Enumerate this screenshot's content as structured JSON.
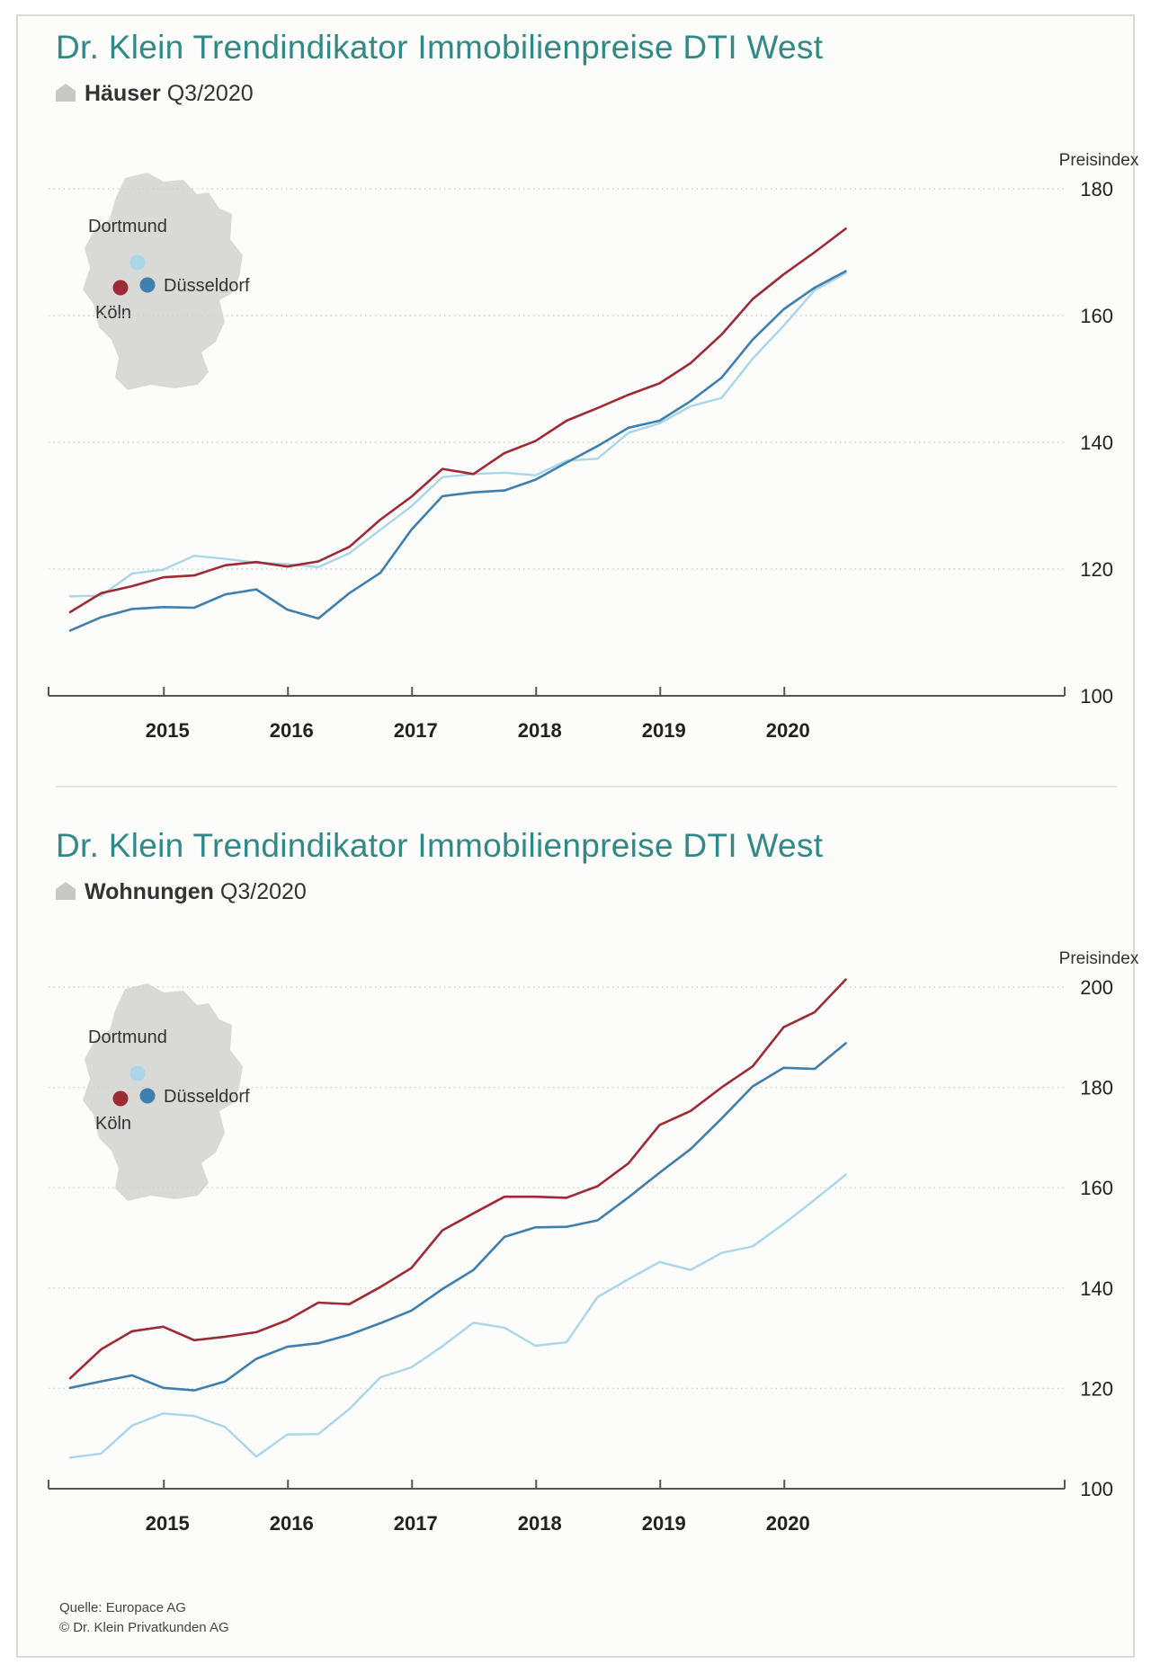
{
  "colors": {
    "title": "#2e8a86",
    "koeln": "#9e2a35",
    "duesseldorf": "#3f7fae",
    "dortmund": "#a9d6e8",
    "map": "#d9d9d8",
    "grid": "#cfcfcf",
    "axis": "#555555"
  },
  "legend": {
    "dortmund": "Dortmund",
    "duesseldorf": "Düsseldorf",
    "koeln": "Köln"
  },
  "footer": {
    "source": "Quelle: Europace AG",
    "copyright": "© Dr. Klein Privatkunden AG"
  },
  "chart_data": [
    {
      "type": "line",
      "title": "Dr. Klein Trendindikator Immobilienpreise DTI West",
      "subtitle_bold": "Häuser",
      "subtitle_rest": "Q3/2020",
      "ylabel": "Preisindex",
      "ylim": [
        100,
        180
      ],
      "yticks": [
        100,
        120,
        140,
        160,
        180
      ],
      "xticks": [
        "2015",
        "2016",
        "2017",
        "2018",
        "2019",
        "2020"
      ],
      "x": [
        "Q2/2014",
        "Q3/2014",
        "Q4/2014",
        "Q1/2015",
        "Q2/2015",
        "Q3/2015",
        "Q4/2015",
        "Q1/2016",
        "Q2/2016",
        "Q3/2016",
        "Q4/2016",
        "Q1/2017",
        "Q2/2017",
        "Q3/2017",
        "Q4/2017",
        "Q1/2018",
        "Q2/2018",
        "Q3/2018",
        "Q4/2018",
        "Q1/2019",
        "Q2/2019",
        "Q3/2019",
        "Q4/2019",
        "Q1/2020",
        "Q2/2020",
        "Q3/2020"
      ],
      "grid": true,
      "series": [
        {
          "name": "Köln",
          "key": "koeln",
          "values": [
            113.2,
            116.2,
            117.3,
            118.7,
            119.0,
            120.6,
            121.1,
            120.4,
            121.2,
            123.5,
            127.8,
            131.4,
            135.8,
            135.0,
            138.3,
            140.2,
            143.4,
            145.4,
            147.5,
            149.3,
            152.5,
            157.0,
            162.6,
            166.5,
            170.0,
            173.7
          ]
        },
        {
          "name": "Düsseldorf",
          "key": "duesseldorf",
          "values": [
            110.3,
            112.4,
            113.7,
            114.0,
            113.9,
            116.0,
            116.8,
            113.6,
            112.2,
            116.2,
            119.4,
            126.2,
            131.5,
            132.1,
            132.4,
            134.1,
            136.8,
            139.4,
            142.3,
            143.4,
            146.5,
            150.2,
            156.2,
            161.0,
            164.4,
            167.0
          ]
        },
        {
          "name": "Dortmund",
          "key": "dortmund",
          "values": [
            115.7,
            115.8,
            119.3,
            119.9,
            122.1,
            121.6,
            121.0,
            120.8,
            120.3,
            122.5,
            126.2,
            129.9,
            134.5,
            135.0,
            135.2,
            134.8,
            137.1,
            137.4,
            141.5,
            143.0,
            145.7,
            147.0,
            153.2,
            158.4,
            164.0,
            166.7
          ]
        }
      ]
    },
    {
      "type": "line",
      "title": "Dr. Klein Trendindikator Immobilienpreise DTI West",
      "subtitle_bold": "Wohnungen",
      "subtitle_rest": "Q3/2020",
      "ylabel": "Preisindex",
      "ylim": [
        100,
        200
      ],
      "yticks": [
        100,
        120,
        140,
        160,
        180,
        200
      ],
      "xticks": [
        "2015",
        "2016",
        "2017",
        "2018",
        "2019",
        "2020"
      ],
      "x": [
        "Q2/2014",
        "Q3/2014",
        "Q4/2014",
        "Q1/2015",
        "Q2/2015",
        "Q3/2015",
        "Q4/2015",
        "Q1/2016",
        "Q2/2016",
        "Q3/2016",
        "Q4/2016",
        "Q1/2017",
        "Q2/2017",
        "Q3/2017",
        "Q4/2017",
        "Q1/2018",
        "Q2/2018",
        "Q3/2018",
        "Q4/2018",
        "Q1/2019",
        "Q2/2019",
        "Q3/2019",
        "Q4/2019",
        "Q1/2020",
        "Q2/2020",
        "Q3/2020"
      ],
      "grid": true,
      "series": [
        {
          "name": "Köln",
          "key": "koeln",
          "values": [
            122.0,
            127.8,
            131.4,
            132.3,
            129.6,
            130.3,
            131.2,
            133.6,
            137.1,
            136.8,
            140.2,
            144.0,
            151.5,
            154.9,
            158.2,
            158.2,
            158.0,
            160.3,
            164.9,
            172.5,
            175.3,
            180.0,
            184.2,
            192.0,
            195.0,
            201.5
          ]
        },
        {
          "name": "Düsseldorf",
          "key": "duesseldorf",
          "values": [
            120.1,
            121.4,
            122.6,
            120.1,
            119.6,
            121.4,
            125.9,
            128.3,
            129.0,
            130.7,
            133.0,
            135.5,
            139.8,
            143.6,
            150.2,
            152.1,
            152.2,
            153.5,
            158.1,
            163.0,
            167.7,
            173.8,
            180.2,
            183.9,
            183.7,
            188.8
          ]
        },
        {
          "name": "Dortmund",
          "key": "dortmund",
          "values": [
            106.2,
            107.0,
            112.6,
            115.0,
            114.5,
            112.3,
            106.4,
            110.8,
            110.9,
            115.9,
            122.2,
            124.2,
            128.4,
            133.1,
            132.1,
            128.5,
            129.2,
            138.2,
            141.8,
            145.2,
            143.6,
            147.0,
            148.3,
            152.8,
            157.6,
            162.6
          ]
        }
      ]
    }
  ]
}
